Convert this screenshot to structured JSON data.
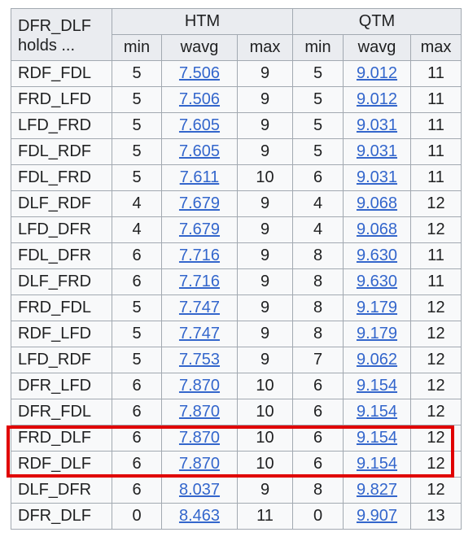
{
  "header": {
    "corner_line1": "DFR_DLF",
    "corner_line2": "holds ...",
    "group_htm": "HTM",
    "group_qtm": "QTM",
    "sub": [
      "min",
      "wavg",
      "max",
      "min",
      "wavg",
      "max"
    ]
  },
  "rows": [
    {
      "name": "RDF_FDL",
      "htm_min": "5",
      "htm_wavg": "7.506",
      "htm_max": "9",
      "qtm_min": "5",
      "qtm_wavg": "9.012",
      "qtm_max": "11"
    },
    {
      "name": "FRD_LFD",
      "htm_min": "5",
      "htm_wavg": "7.506",
      "htm_max": "9",
      "qtm_min": "5",
      "qtm_wavg": "9.012",
      "qtm_max": "11"
    },
    {
      "name": "LFD_FRD",
      "htm_min": "5",
      "htm_wavg": "7.605",
      "htm_max": "9",
      "qtm_min": "5",
      "qtm_wavg": "9.031",
      "qtm_max": "11"
    },
    {
      "name": "FDL_RDF",
      "htm_min": "5",
      "htm_wavg": "7.605",
      "htm_max": "9",
      "qtm_min": "5",
      "qtm_wavg": "9.031",
      "qtm_max": "11"
    },
    {
      "name": "FDL_FRD",
      "htm_min": "5",
      "htm_wavg": "7.611",
      "htm_max": "10",
      "qtm_min": "6",
      "qtm_wavg": "9.031",
      "qtm_max": "11"
    },
    {
      "name": "DLF_RDF",
      "htm_min": "4",
      "htm_wavg": "7.679",
      "htm_max": "9",
      "qtm_min": "4",
      "qtm_wavg": "9.068",
      "qtm_max": "12"
    },
    {
      "name": "LFD_DFR",
      "htm_min": "4",
      "htm_wavg": "7.679",
      "htm_max": "9",
      "qtm_min": "4",
      "qtm_wavg": "9.068",
      "qtm_max": "12"
    },
    {
      "name": "FDL_DFR",
      "htm_min": "6",
      "htm_wavg": "7.716",
      "htm_max": "9",
      "qtm_min": "8",
      "qtm_wavg": "9.630",
      "qtm_max": "11"
    },
    {
      "name": "DLF_FRD",
      "htm_min": "6",
      "htm_wavg": "7.716",
      "htm_max": "9",
      "qtm_min": "8",
      "qtm_wavg": "9.630",
      "qtm_max": "11"
    },
    {
      "name": "FRD_FDL",
      "htm_min": "5",
      "htm_wavg": "7.747",
      "htm_max": "9",
      "qtm_min": "8",
      "qtm_wavg": "9.179",
      "qtm_max": "12"
    },
    {
      "name": "RDF_LFD",
      "htm_min": "5",
      "htm_wavg": "7.747",
      "htm_max": "9",
      "qtm_min": "8",
      "qtm_wavg": "9.179",
      "qtm_max": "12"
    },
    {
      "name": "LFD_RDF",
      "htm_min": "5",
      "htm_wavg": "7.753",
      "htm_max": "9",
      "qtm_min": "7",
      "qtm_wavg": "9.062",
      "qtm_max": "12"
    },
    {
      "name": "DFR_LFD",
      "htm_min": "6",
      "htm_wavg": "7.870",
      "htm_max": "10",
      "qtm_min": "6",
      "qtm_wavg": "9.154",
      "qtm_max": "12"
    },
    {
      "name": "DFR_FDL",
      "htm_min": "6",
      "htm_wavg": "7.870",
      "htm_max": "10",
      "qtm_min": "6",
      "qtm_wavg": "9.154",
      "qtm_max": "12"
    },
    {
      "name": "FRD_DLF",
      "htm_min": "6",
      "htm_wavg": "7.870",
      "htm_max": "10",
      "qtm_min": "6",
      "qtm_wavg": "9.154",
      "qtm_max": "12"
    },
    {
      "name": "RDF_DLF",
      "htm_min": "6",
      "htm_wavg": "7.870",
      "htm_max": "10",
      "qtm_min": "6",
      "qtm_wavg": "9.154",
      "qtm_max": "12"
    },
    {
      "name": "DLF_DFR",
      "htm_min": "6",
      "htm_wavg": "8.037",
      "htm_max": "9",
      "qtm_min": "8",
      "qtm_wavg": "9.827",
      "qtm_max": "12"
    },
    {
      "name": "DFR_DLF",
      "htm_min": "0",
      "htm_wavg": "8.463",
      "htm_max": "11",
      "qtm_min": "0",
      "qtm_wavg": "9.907",
      "qtm_max": "13"
    }
  ],
  "highlight": {
    "rows": [
      "FRD_DLF",
      "RDF_DLF"
    ],
    "color": "#e00000"
  },
  "colors": {
    "link": "#3366cc",
    "header_bg": "#eaecf0",
    "cell_bg": "#f8f9fa",
    "border": "#a2a9b1"
  }
}
